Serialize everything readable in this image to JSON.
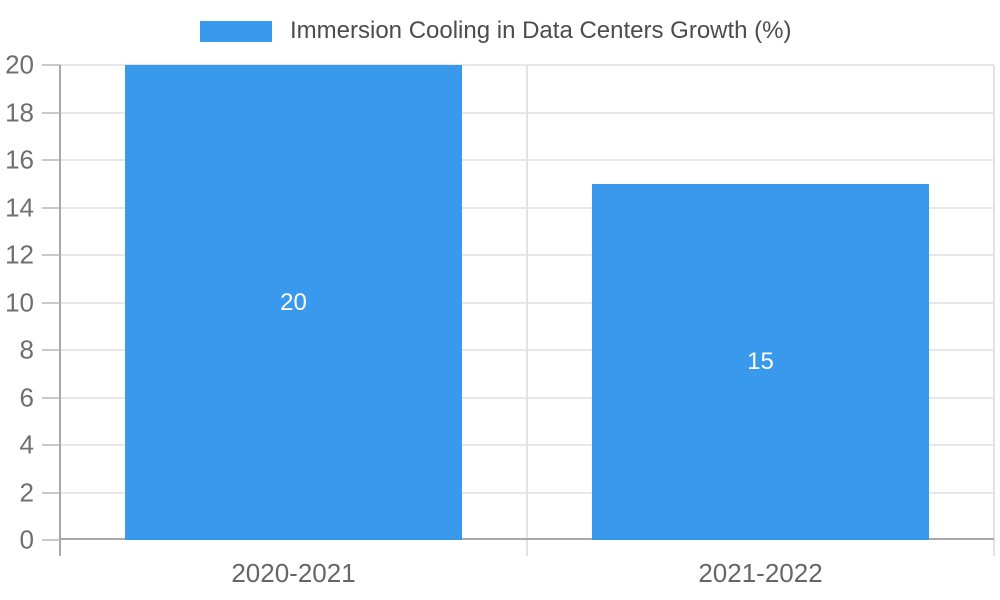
{
  "legend": {
    "label": "Immersion Cooling in Data Centers Growth (%)"
  },
  "chart_data": {
    "type": "bar",
    "title": "",
    "xlabel": "",
    "ylabel": "",
    "categories": [
      "2020-2021",
      "2021-2022"
    ],
    "series": [
      {
        "name": "Immersion Cooling in Data Centers Growth (%)",
        "values": [
          20,
          15
        ],
        "data_labels": [
          "20",
          "15"
        ]
      }
    ],
    "ylim": [
      0,
      20
    ],
    "yticks": [
      0,
      2,
      4,
      6,
      8,
      10,
      12,
      14,
      16,
      18,
      20
    ],
    "grid": true,
    "legend_position": "top",
    "colors": {
      "bar": "#3999EC",
      "data_label": "#FFFFFF",
      "gridline": "#E7E7E7",
      "axis_line": "#A9A9A9",
      "tick": "#C9C9C9",
      "tick_label": "#6F6F6F",
      "category_label": "#666666",
      "legend_text": "#4C4C4C",
      "background": "#FFFFFF"
    }
  }
}
